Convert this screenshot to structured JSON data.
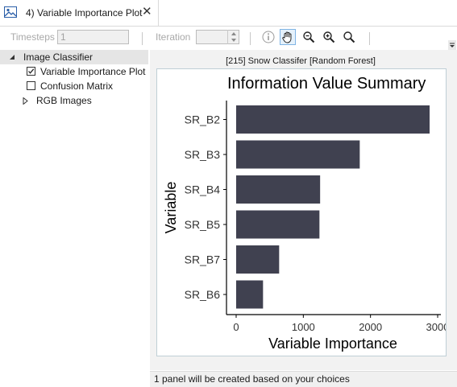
{
  "tab": {
    "title": "4) Variable Importance Plot",
    "close_glyph": "✕"
  },
  "toolbar": {
    "timesteps_label": "Timesteps",
    "timesteps_value": "1",
    "iteration_label": "Iteration",
    "iteration_value": ""
  },
  "tree": {
    "root_label": "Image Classifier",
    "items": [
      {
        "label": "Variable Importance Plot",
        "checked": true
      },
      {
        "label": "Confusion Matrix",
        "checked": false
      }
    ],
    "collapsed_label": "RGB Images"
  },
  "plot": {
    "caption": "[215] Snow Classifer [Random Forest]"
  },
  "chart_data": {
    "type": "bar",
    "orientation": "horizontal",
    "title": "Information Value Summary",
    "xlabel": "Variable Importance",
    "ylabel": "Variable",
    "categories": [
      "SR_B2",
      "SR_B3",
      "SR_B4",
      "SR_B5",
      "SR_B7",
      "SR_B6"
    ],
    "values": [
      2880,
      1840,
      1250,
      1240,
      640,
      400
    ],
    "xlim": [
      0,
      3000
    ],
    "xticks": [
      0,
      1000,
      2000,
      3000
    ],
    "xtick_labels": [
      "0",
      "1000",
      "2000",
      "3000"
    ],
    "bar_color": "#404150",
    "grid": false
  },
  "status": {
    "text": "1 panel will be created based on your choices"
  }
}
